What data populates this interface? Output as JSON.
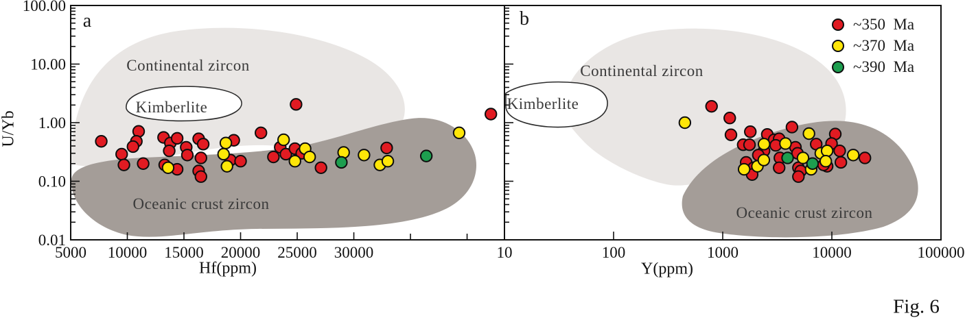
{
  "figure": {
    "caption": "Fig. 6"
  },
  "legend": {
    "items": [
      {
        "label": "~350  Ma",
        "color": "#e11b22"
      },
      {
        "label": "~370  Ma",
        "color": "#ffe608"
      },
      {
        "label": "~390  Ma",
        "color": "#1d9e4f"
      }
    ]
  },
  "field_colors": {
    "continental": "#e9e6e4",
    "oceanic": "#a49d98",
    "kimberlite_fill": "#ffffff",
    "outline": "#2b2b2b"
  },
  "chart_data": [
    {
      "id": "a",
      "type": "scatter",
      "panel_label": "a",
      "xlabel": "Hf(ppm)",
      "ylabel": "U/Yb",
      "xscale": "linear",
      "yscale": "log",
      "xlim": [
        5000,
        43300
      ],
      "ylim": [
        0.01,
        100
      ],
      "x_ticks": [
        {
          "value": 5000,
          "label": "5000"
        },
        {
          "value": 10000,
          "label": "10000"
        },
        {
          "value": 15000,
          "label": "15000"
        },
        {
          "value": 20000,
          "label": "20000"
        },
        {
          "value": 25000,
          "label": "25000"
        },
        {
          "value": 30000,
          "label": "30000"
        },
        {
          "value": 35000,
          "label": ""
        },
        {
          "value": 40000,
          "label": ""
        }
      ],
      "y_tick_labels": [
        "100.00",
        "10.00",
        "1.00",
        "0.10",
        "0.01"
      ],
      "regions": [
        {
          "name": "Continental zircon"
        },
        {
          "name": "Kimberlite"
        },
        {
          "name": "Oceanic crust zircon"
        }
      ],
      "series": [
        {
          "name": "~350 Ma",
          "color": "#e11b22",
          "points": [
            [
              7700,
              0.48
            ],
            [
              11000,
              0.71
            ],
            [
              10800,
              0.48
            ],
            [
              10500,
              0.39
            ],
            [
              9500,
              0.29
            ],
            [
              9700,
              0.19
            ],
            [
              11400,
              0.2
            ],
            [
              13200,
              0.56
            ],
            [
              13800,
              0.45
            ],
            [
              14400,
              0.54
            ],
            [
              13700,
              0.33
            ],
            [
              15200,
              0.38
            ],
            [
              15300,
              0.28
            ],
            [
              16300,
              0.53
            ],
            [
              16700,
              0.43
            ],
            [
              13300,
              0.19
            ],
            [
              14400,
              0.16
            ],
            [
              16500,
              0.25
            ],
            [
              16300,
              0.15
            ],
            [
              16500,
              0.12
            ],
            [
              19400,
              0.5
            ],
            [
              19100,
              0.23
            ],
            [
              20000,
              0.22
            ],
            [
              21800,
              0.67
            ],
            [
              22900,
              0.26
            ],
            [
              23500,
              0.38
            ],
            [
              24000,
              0.29
            ],
            [
              24800,
              0.36
            ],
            [
              25400,
              0.3
            ],
            [
              27100,
              0.17
            ],
            [
              24900,
              2.05
            ],
            [
              32900,
              0.37
            ],
            [
              42100,
              1.4
            ]
          ]
        },
        {
          "name": "~370 Ma",
          "color": "#ffe608",
          "points": [
            [
              13600,
              0.17
            ],
            [
              18700,
              0.45
            ],
            [
              18500,
              0.29
            ],
            [
              18800,
              0.18
            ],
            [
              23800,
              0.51
            ],
            [
              25700,
              0.36
            ],
            [
              26100,
              0.26
            ],
            [
              24800,
              0.22
            ],
            [
              29100,
              0.31
            ],
            [
              30900,
              0.28
            ],
            [
              32300,
              0.19
            ],
            [
              33000,
              0.22
            ],
            [
              39300,
              0.67
            ]
          ]
        },
        {
          "name": "~390 Ma",
          "color": "#1d9e4f",
          "points": [
            [
              28900,
              0.21
            ],
            [
              36400,
              0.27
            ]
          ]
        }
      ]
    },
    {
      "id": "b",
      "type": "scatter",
      "panel_label": "b",
      "xlabel": "Y(ppm)",
      "ylabel": "U/Yb",
      "xscale": "log",
      "yscale": "log",
      "xlim": [
        10,
        100000
      ],
      "ylim": [
        0.01,
        100
      ],
      "x_ticks": [
        {
          "value": 10,
          "label": "10"
        },
        {
          "value": 100,
          "label": "100"
        },
        {
          "value": 1000,
          "label": "1000"
        },
        {
          "value": 10000,
          "label": "10000"
        },
        {
          "value": 100000,
          "label": "100000"
        }
      ],
      "y_tick_labels": [],
      "regions": [
        {
          "name": "Continental zircon"
        },
        {
          "name": "Kimberlite"
        },
        {
          "name": "Oceanic crust zircon"
        }
      ],
      "series": [
        {
          "name": "~350 Ma",
          "color": "#e11b22",
          "points": [
            [
              790,
              1.9
            ],
            [
              1160,
              1.2
            ],
            [
              1190,
              0.62
            ],
            [
              1790,
              0.7
            ],
            [
              1540,
              0.42
            ],
            [
              1760,
              0.42
            ],
            [
              2560,
              0.63
            ],
            [
              2960,
              0.51
            ],
            [
              3290,
              0.53
            ],
            [
              3060,
              0.41
            ],
            [
              2390,
              0.33
            ],
            [
              2120,
              0.28
            ],
            [
              4310,
              0.84
            ],
            [
              4640,
              0.38
            ],
            [
              4850,
              0.3
            ],
            [
              3340,
              0.25
            ],
            [
              7190,
              0.43
            ],
            [
              10750,
              0.64
            ],
            [
              9940,
              0.44
            ],
            [
              11800,
              0.33
            ],
            [
              12100,
              0.21
            ],
            [
              9050,
              0.18
            ],
            [
              20100,
              0.25
            ],
            [
              1640,
              0.21
            ],
            [
              1920,
              0.17
            ],
            [
              1860,
              0.13
            ],
            [
              3290,
              0.17
            ],
            [
              4940,
              0.17
            ],
            [
              5180,
              0.15
            ],
            [
              4940,
              0.12
            ],
            [
              8390,
              0.19
            ]
          ]
        },
        {
          "name": "~370 Ma",
          "color": "#ffe608",
          "points": [
            [
              450,
              1.0
            ],
            [
              2390,
              0.43
            ],
            [
              3760,
              0.44
            ],
            [
              5440,
              0.25
            ],
            [
              6170,
              0.65
            ],
            [
              7920,
              0.3
            ],
            [
              9050,
              0.33
            ],
            [
              8800,
              0.22
            ],
            [
              15700,
              0.28
            ],
            [
              1570,
              0.16
            ],
            [
              2080,
              0.18
            ],
            [
              2380,
              0.23
            ],
            [
              6460,
              0.16
            ]
          ]
        },
        {
          "name": "~390 Ma",
          "color": "#1d9e4f",
          "points": [
            [
              3930,
              0.25
            ],
            [
              6650,
              0.2
            ]
          ]
        }
      ]
    }
  ]
}
